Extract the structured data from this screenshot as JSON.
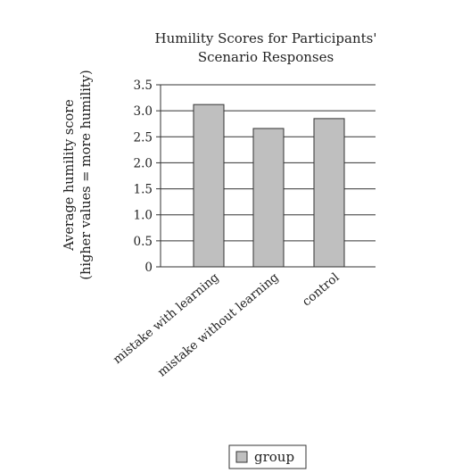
{
  "chart_data": {
    "type": "bar",
    "title": [
      "Humility Scores for Participants'",
      "Scenario Responses"
    ],
    "ylabel": [
      "Average humility score",
      "(higher values = more humility)"
    ],
    "xlabel": "",
    "categories": [
      "mistake with learning",
      "mistake without learning",
      "control"
    ],
    "series": [
      {
        "name": "group",
        "values": [
          3.12,
          2.66,
          2.85
        ],
        "color": "#bfbfbf"
      }
    ],
    "ylim": [
      0,
      3.5
    ],
    "yticks": [
      "0",
      "0.5",
      "1.0",
      "1.5",
      "2.0",
      "2.5",
      "3.0",
      "3.5"
    ],
    "grid": true,
    "legend": "bottom-center",
    "colors": {
      "bar": "#bfbfbf",
      "stroke": "#333333",
      "grid": "#333333"
    }
  }
}
